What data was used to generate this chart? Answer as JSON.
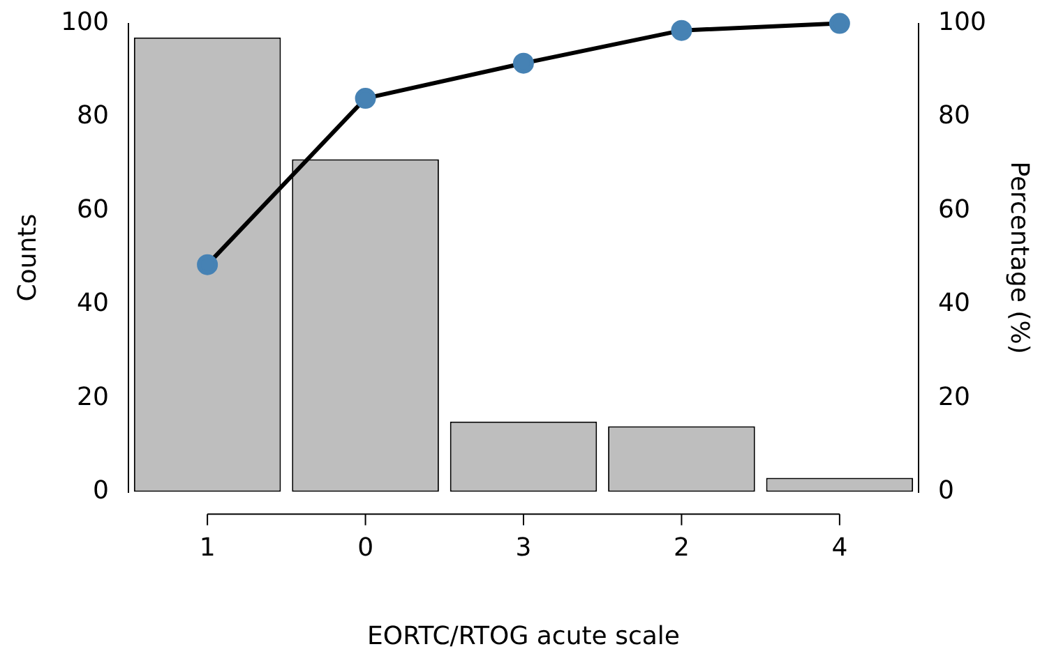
{
  "chart_data": {
    "type": "bar",
    "xlabel": "EORTC/RTOG acute scale",
    "ylabel": "Counts",
    "y2label": "Percentage (%)",
    "categories": [
      "1",
      "0",
      "3",
      "2",
      "4"
    ],
    "series": [
      {
        "color": "#bebebe",
        "values": [
          97,
          71,
          15,
          14,
          3
        ]
      },
      {
        "type": "line",
        "axis": "y2",
        "color": "#000000",
        "marker": "circle",
        "values": [
          48.5,
          84,
          91.5,
          98.5,
          100
        ]
      }
    ],
    "ylim": [
      0,
      100
    ],
    "yticks": [
      0,
      20,
      40,
      60,
      80,
      100
    ],
    "y2lim": [
      0,
      100
    ],
    "y2ticks": [
      0,
      20,
      40,
      60,
      80,
      100
    ],
    "grid": false,
    "legend": false
  }
}
